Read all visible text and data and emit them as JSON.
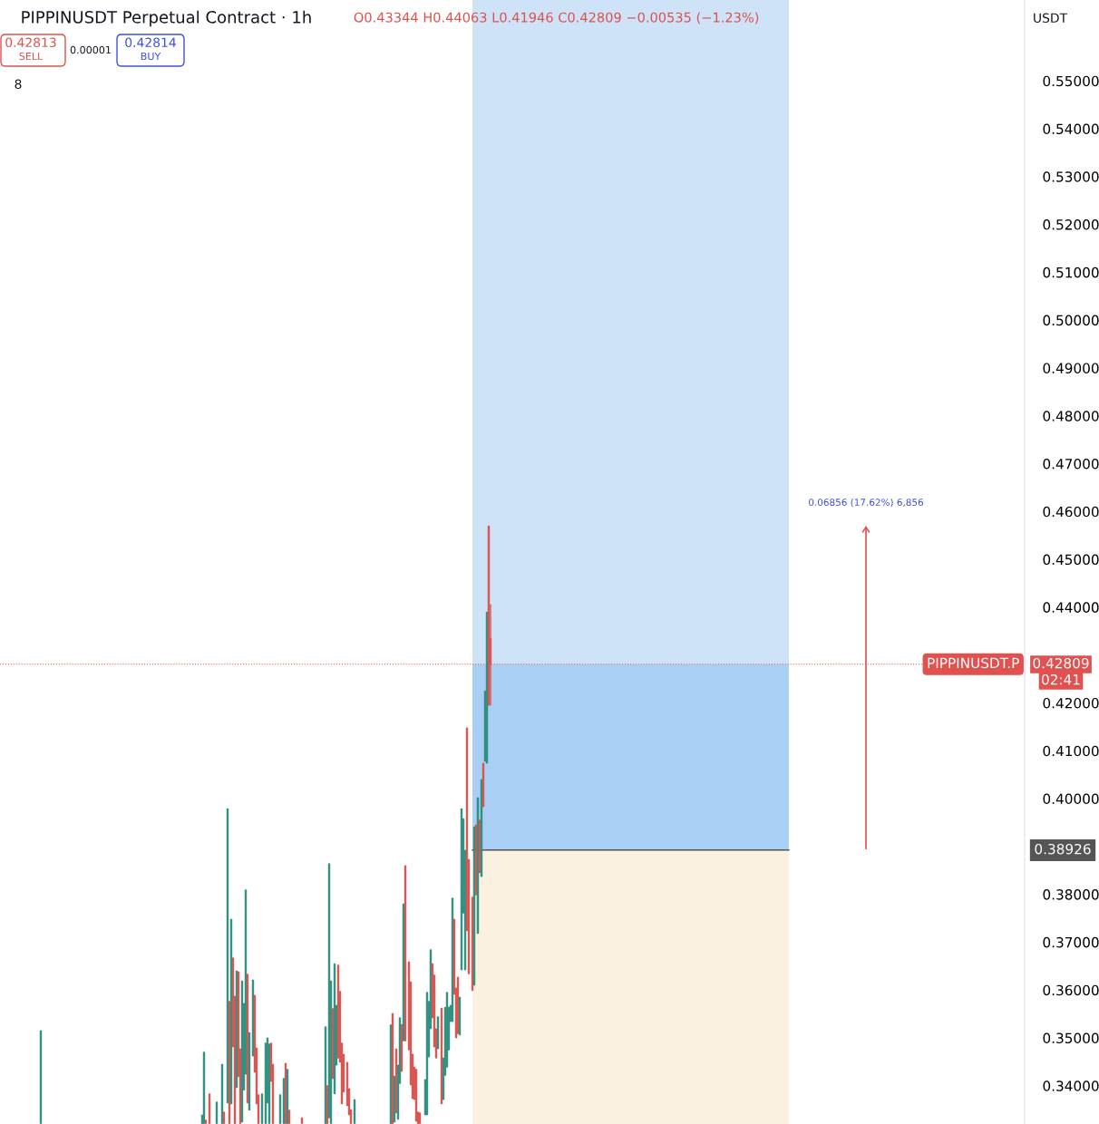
{
  "chart_data": {
    "type": "candlestick",
    "title": "PIPPINUSDT Perpetual Contract · 1h",
    "subtitle": "O0.43344 H0.44063 L0.41946 C0.42809 −0.00535 (−1.23%)",
    "categories": [
      null,
      null,
      null,
      null,
      null,
      null,
      null,
      null,
      null,
      null,
      null,
      null,
      null,
      null,
      null,
      null,
      null,
      null,
      null,
      null,
      null,
      null,
      null,
      null,
      null,
      null,
      null,
      null,
      null,
      null,
      null,
      null,
      null,
      null,
      null,
      null,
      null,
      null,
      null,
      null,
      null,
      null,
      null,
      null,
      null,
      null,
      null,
      null,
      null,
      null,
      null,
      null,
      null,
      null,
      null,
      null,
      null,
      null,
      null,
      null,
      null,
      null,
      null,
      null,
      null,
      null,
      null,
      null,
      null,
      null,
      null,
      null,
      null,
      null,
      null,
      null,
      null,
      null,
      null,
      null,
      null,
      null,
      null,
      null,
      null,
      null,
      null,
      null,
      null,
      null,
      null,
      null,
      null,
      null,
      null,
      null,
      null,
      null,
      null,
      null,
      null,
      null,
      null,
      null,
      null,
      null,
      null,
      null,
      null,
      null,
      null,
      null,
      null,
      null,
      null,
      null,
      null,
      null,
      null,
      null,
      null,
      null,
      null,
      null,
      null,
      null,
      null,
      null,
      null,
      null,
      null,
      null,
      null,
      null,
      null,
      null,
      null,
      null,
      null,
      null,
      null,
      null,
      null,
      null,
      null,
      null,
      null,
      null,
      null,
      null,
      null,
      null,
      null,
      null,
      null,
      null,
      null,
      null,
      null,
      null,
      null,
      null,
      null,
      null,
      null,
      null,
      null,
      null,
      null,
      null,
      null,
      null,
      null,
      null,
      null,
      null,
      null,
      null,
      null,
      null,
      null,
      null,
      null,
      null,
      null,
      null,
      null,
      null,
      null,
      null,
      null,
      null,
      null,
      null,
      null,
      null,
      null,
      null,
      null,
      null,
      null,
      null,
      null,
      null,
      null,
      null,
      null,
      null,
      null,
      null,
      null,
      null,
      null,
      null,
      null,
      null,
      null,
      null,
      null,
      null,
      null,
      null,
      null,
      null,
      null,
      null,
      null,
      null,
      null,
      null,
      null,
      null,
      null,
      null,
      null,
      null,
      null,
      null,
      null,
      null,
      null,
      null,
      null,
      null,
      null,
      null,
      null,
      null,
      null,
      null,
      null,
      null,
      null,
      null,
      null,
      null,
      null,
      null,
      null,
      null,
      null,
      null,
      null,
      null,
      null,
      null,
      null,
      null,
      null,
      null,
      null,
      null,
      null,
      null,
      null,
      null,
      null,
      null,
      null,
      null,
      null,
      null,
      null,
      null,
      null,
      null,
      null,
      null,
      null,
      null,
      null,
      null,
      null,
      null,
      null,
      null,
      null,
      null,
      null,
      null,
      null,
      null,
      null,
      null,
      null,
      null,
      null,
      null,
      null,
      null,
      null,
      null,
      null,
      null,
      null,
      null,
      null,
      null,
      null,
      null,
      null,
      null,
      null,
      null,
      null,
      null,
      null,
      null,
      null,
      null,
      null,
      null,
      null,
      null,
      null,
      null,
      null,
      null,
      null,
      null,
      null,
      null,
      null,
      null,
      null,
      null,
      null,
      null,
      null,
      null,
      null,
      null,
      null,
      null,
      null,
      null,
      null,
      null,
      null,
      null,
      null,
      null,
      null,
      null,
      null,
      null,
      null,
      null,
      null,
      null,
      null,
      null,
      null,
      null,
      null,
      null,
      null,
      null,
      null,
      null,
      null,
      null,
      null,
      null,
      null,
      null,
      null,
      null,
      null,
      null,
      null,
      null,
      null,
      null,
      null,
      null,
      null,
      null,
      null,
      null,
      null,
      null,
      null,
      null,
      null,
      null,
      null,
      null,
      null,
      null,
      null,
      null,
      null,
      null,
      null,
      null,
      null,
      null,
      null,
      null,
      null,
      null,
      null,
      null,
      null,
      null,
      null,
      null,
      null,
      null,
      null,
      null,
      null,
      null,
      null,
      null,
      null,
      null,
      null,
      null,
      null,
      null,
      null,
      null,
      null,
      null,
      null,
      null,
      null,
      null,
      null,
      null,
      null,
      null,
      null,
      null,
      null,
      null,
      null,
      null,
      null,
      null,
      null,
      null,
      null,
      null,
      null,
      null,
      null,
      null,
      null,
      null,
      null,
      null,
      null,
      null,
      null,
      null,
      null,
      null,
      null,
      null,
      null,
      null,
      null,
      null,
      null,
      null,
      null,
      null,
      null,
      null,
      null,
      null,
      null,
      null,
      null,
      null,
      null,
      null,
      null,
      null,
      null,
      null,
      null,
      null,
      null,
      null,
      null,
      null,
      null,
      null,
      null,
      null,
      null,
      null,
      null,
      null,
      null,
      null,
      null,
      null,
      null,
      null,
      null,
      null,
      null,
      null,
      null,
      null,
      null,
      null,
      null,
      null,
      null,
      null,
      null,
      null,
      null,
      null,
      null,
      null,
      null,
      null,
      null,
      null,
      null,
      null,
      null,
      null,
      null,
      null,
      null,
      null,
      null,
      null,
      null,
      null,
      null,
      null,
      null,
      null,
      null,
      null,
      null
    ],
    "ohlc": [
      null,
      null,
      null,
      null,
      null,
      null,
      null,
      null,
      null,
      null,
      null,
      null,
      null,
      null,
      null,
      null,
      null,
      null,
      null,
      null,
      null,
      null,
      [
        0.3321,
        0.3515,
        0.3321,
        0.3515
      ],
      null,
      null,
      null,
      null,
      null,
      null,
      null,
      null,
      null,
      null,
      null,
      null,
      null,
      null,
      null,
      null,
      null,
      null,
      null,
      null,
      null,
      null,
      null,
      null,
      null,
      null,
      null,
      null,
      null,
      null,
      null,
      null,
      null,
      null,
      null,
      null,
      null,
      null,
      null,
      null,
      null,
      null,
      null,
      null,
      null,
      null,
      null,
      null,
      null,
      null,
      null,
      null,
      null,
      null,
      null,
      null,
      null,
      null,
      null,
      null,
      null,
      null,
      null,
      null,
      null,
      null,
      null,
      null,
      null,
      null,
      null,
      null,
      null,
      null,
      null,
      null,
      null,
      null,
      null,
      null,
      null,
      null,
      null,
      null,
      null,
      null,
      null,
      null,
      [
        0.3321,
        0.3339,
        0.3321,
        0.3339
      ],
      [
        0.3321,
        0.347,
        0.3321,
        0.347
      ],
      [
        0.3328,
        0.3328,
        0.3321,
        0.3321
      ],
      null,
      [
        0.3383,
        0.3383,
        0.3321,
        0.3321
      ],
      null,
      null,
      null,
      [
        0.3321,
        0.3366,
        0.3321,
        0.3366
      ],
      null,
      null,
      [
        0.3321,
        0.3445,
        0.3321,
        0.3445
      ],
      [
        0.3345,
        0.3345,
        0.3321,
        0.3321
      ],
      null,
      [
        0.3364,
        0.3979,
        0.3364,
        0.3979
      ],
      [
        0.3576,
        0.3576,
        0.3321,
        0.3321
      ],
      [
        0.3362,
        0.3748,
        0.3362,
        0.3748
      ],
      [
        0.3667,
        0.3667,
        0.3481,
        0.3481
      ],
      [
        0.3587,
        0.3587,
        0.3321,
        0.3321
      ],
      [
        0.3396,
        0.364,
        0.3396,
        0.364
      ],
      [
        0.3638,
        0.3638,
        0.3419,
        0.3419
      ],
      [
        0.3477,
        0.3477,
        0.3321,
        0.3321
      ],
      [
        0.3324,
        0.3619,
        0.3324,
        0.3619
      ],
      [
        0.3391,
        0.3572,
        0.3391,
        0.3572
      ],
      [
        0.3424,
        0.3809,
        0.3424,
        0.3809
      ],
      [
        0.3633,
        0.3633,
        0.3364,
        0.3364
      ],
      [
        0.3349,
        0.3511,
        0.3349,
        0.3511
      ],
      null,
      [
        0.3462,
        0.3621,
        0.3462,
        0.3621
      ],
      [
        0.3589,
        0.3589,
        0.3428,
        0.3428
      ],
      [
        0.3479,
        0.3479,
        0.3362,
        0.3362
      ],
      [
        0.3381,
        0.3381,
        0.3321,
        0.3321
      ],
      null,
      [
        0.3321,
        0.3383,
        0.3321,
        0.3383
      ],
      null,
      [
        0.3321,
        0.3489,
        0.3321,
        0.3489
      ],
      [
        0.3364,
        0.35,
        0.3364,
        0.35
      ],
      [
        0.3321,
        0.3487,
        0.3321,
        0.3487
      ],
      [
        0.3489,
        0.3489,
        0.3409,
        0.3409
      ],
      [
        0.3445,
        0.3445,
        0.3321,
        0.3321
      ],
      null,
      null,
      null,
      [
        0.3321,
        0.3381,
        0.3321,
        0.3381
      ],
      null,
      [
        0.3321,
        0.3415,
        0.3321,
        0.3415
      ],
      [
        0.3447,
        0.3447,
        0.3321,
        0.3321
      ],
      [
        0.3321,
        0.3434,
        0.3321,
        0.3434
      ],
      [
        0.3349,
        0.3349,
        0.3321,
        0.3321
      ],
      null,
      null,
      null,
      null,
      null,
      null,
      [
        0.3333,
        0.3333,
        0.3321,
        0.3321
      ],
      null,
      null,
      null,
      null,
      null,
      null,
      null,
      null,
      null,
      null,
      null,
      null,
      [
        0.3321,
        0.3523,
        0.3321,
        0.3523
      ],
      [
        0.34,
        0.34,
        0.3321,
        0.3321
      ],
      [
        0.3333,
        0.3864,
        0.3333,
        0.3864
      ],
      [
        0.3321,
        0.3619,
        0.3321,
        0.3619
      ],
      [
        0.3561,
        0.3561,
        0.3415,
        0.3415
      ],
      [
        0.3383,
        0.3655,
        0.3383,
        0.3655
      ],
      [
        0.3443,
        0.3568,
        0.3443,
        0.3568
      ],
      [
        0.3652,
        0.3652,
        0.3458,
        0.3458
      ],
      [
        0.3597,
        0.3597,
        0.3449,
        0.3449
      ],
      [
        0.3489,
        0.3489,
        0.3362,
        0.3362
      ],
      [
        0.3466,
        0.3466,
        0.3387,
        0.3387
      ],
      null,
      [
        0.3449,
        0.3449,
        0.3358,
        0.3358
      ],
      [
        0.3394,
        0.3394,
        0.3339,
        0.3339
      ],
      [
        0.335,
        0.335,
        0.3321,
        0.3321
      ],
      null,
      [
        0.3321,
        0.3371,
        0.3321,
        0.3371
      ],
      null,
      null,
      null,
      null,
      null,
      null,
      null,
      null,
      null,
      null,
      null,
      null,
      null,
      null,
      null,
      null,
      null,
      null,
      null,
      [
        0.3321,
        0.3527,
        0.3321,
        0.3527
      ],
      [
        0.3551,
        0.3551,
        0.3321,
        0.3321
      ],
      [
        0.3324,
        0.342,
        0.3324,
        0.342
      ],
      [
        0.3477,
        0.3477,
        0.3343,
        0.3343
      ],
      [
        0.333,
        0.3443,
        0.333,
        0.3443
      ],
      [
        0.3405,
        0.3542,
        0.3405,
        0.3542
      ],
      [
        0.3528,
        0.3528,
        0.343,
        0.343
      ],
      [
        0.3494,
        0.378,
        0.3494,
        0.378
      ],
      [
        0.386,
        0.386,
        0.3494,
        0.3494
      ],
      null,
      [
        0.3659,
        0.3659,
        0.3475,
        0.3475
      ],
      [
        0.3617,
        0.3617,
        0.3402,
        0.3402
      ],
      [
        0.3466,
        0.3466,
        0.3373,
        0.3373
      ],
      [
        0.3439,
        0.3439,
        0.3371,
        0.3371
      ],
      [
        0.3434,
        0.3434,
        0.3326,
        0.3326
      ],
      [
        0.3345,
        0.3345,
        0.3321,
        0.3321
      ],
      [
        0.3343,
        0.3343,
        0.3321,
        0.3321
      ],
      null,
      null,
      [
        0.3339,
        0.3413,
        0.3339,
        0.3413
      ],
      [
        0.3339,
        0.3595,
        0.3339,
        0.3595
      ],
      [
        0.346,
        0.3576,
        0.346,
        0.3576
      ],
      [
        0.3519,
        0.3684,
        0.3519,
        0.3684
      ],
      [
        0.3655,
        0.3655,
        0.3542,
        0.3542
      ],
      [
        0.3631,
        0.3631,
        0.3481,
        0.3481
      ],
      [
        0.3519,
        0.3519,
        0.3458,
        0.3458
      ],
      [
        0.3477,
        0.3544,
        0.3477,
        0.3544
      ],
      null,
      [
        0.3562,
        0.3562,
        0.3362,
        0.3362
      ],
      [
        0.3371,
        0.3458,
        0.3371,
        0.3458
      ],
      [
        0.3422,
        0.3564,
        0.3422,
        0.3564
      ],
      [
        0.3439,
        0.3595,
        0.3439,
        0.3595
      ],
      [
        0.3475,
        0.3564,
        0.3475,
        0.3564
      ],
      [
        0.3534,
        0.3568,
        0.3534,
        0.3568
      ],
      [
        0.3534,
        0.3792,
        0.3534,
        0.3792
      ],
      [
        0.3748,
        0.3748,
        0.3591,
        0.3591
      ],
      [
        0.3604,
        0.3604,
        0.35,
        0.35
      ],
      [
        0.3627,
        0.3627,
        0.3509,
        0.3509
      ],
      [
        0.3506,
        0.3585,
        0.3506,
        0.3585
      ],
      [
        0.3642,
        0.3979,
        0.3642,
        0.3979
      ],
      [
        0.3761,
        0.3958,
        0.3761,
        0.3958
      ],
      [
        0.3642,
        0.3892,
        0.3642,
        0.3892
      ],
      [
        0.4148,
        0.4148,
        0.3724,
        0.3724
      ],
      [
        0.3873,
        0.3873,
        0.3634,
        0.3634
      ],
      null,
      [
        0.3794,
        0.3794,
        0.3599,
        0.3599
      ],
      [
        0.361,
        0.3941,
        0.361,
        0.3941
      ],
      [
        0.3945,
        0.3945,
        0.3799,
        0.3799
      ],
      [
        0.3718,
        0.4002,
        0.3718,
        0.4002
      ],
      [
        0.3955,
        0.3955,
        0.3845,
        0.3845
      ],
      [
        0.3837,
        0.404,
        0.3837,
        0.404
      ],
      [
        0.4074,
        0.4074,
        0.3983,
        0.3983
      ],
      [
        0.4078,
        0.4225,
        0.4078,
        0.4225
      ],
      [
        0.4074,
        0.439,
        0.4074,
        0.439
      ],
      [
        0.457,
        0.457,
        0.4195,
        0.4195
      ],
      [
        0.43344,
        0.44063,
        0.41946,
        0.42809
      ],
      null,
      null,
      null,
      null,
      null,
      null,
      null,
      null,
      null,
      null,
      null,
      null,
      null,
      null,
      null,
      null,
      null,
      null,
      null,
      null,
      null,
      null,
      null,
      null,
      null,
      null,
      null,
      null,
      null,
      null,
      null,
      null,
      null,
      null,
      null,
      null,
      null,
      null,
      null,
      null,
      null,
      null,
      null,
      null,
      null,
      null,
      null,
      null,
      null,
      null,
      null,
      null,
      null,
      null,
      null,
      null,
      null,
      null,
      null,
      null,
      null,
      null,
      null,
      null,
      null,
      null,
      null,
      null,
      null,
      null,
      null,
      null,
      null,
      null,
      null,
      null,
      null,
      null,
      null,
      null,
      null,
      null,
      null,
      null,
      null,
      null,
      null,
      null,
      null,
      null,
      null,
      null,
      null,
      null,
      null,
      null,
      null,
      null,
      null,
      null,
      null,
      null,
      null,
      null,
      null,
      null,
      null,
      null,
      null,
      null,
      null,
      null,
      null,
      null,
      null,
      null,
      null,
      null,
      null,
      null,
      null,
      null,
      null,
      null,
      null,
      null,
      null,
      null,
      null,
      null,
      null,
      null,
      null,
      null,
      null,
      null,
      null,
      null,
      null,
      null,
      null,
      null,
      null,
      null,
      null,
      null,
      null,
      null,
      null,
      null,
      null,
      null,
      null,
      null,
      null,
      null,
      null,
      null,
      null,
      null,
      null,
      null,
      null,
      null,
      null,
      null,
      null,
      null,
      null,
      null,
      null,
      null,
      null,
      null,
      null,
      null,
      null,
      null,
      null,
      null,
      null,
      null,
      null,
      null,
      null,
      null,
      null,
      null,
      null,
      null,
      null,
      null,
      null,
      null,
      null,
      null,
      null,
      null,
      null,
      null,
      null,
      null,
      null,
      null,
      null,
      null,
      null,
      null,
      null,
      null,
      null,
      null,
      null,
      null,
      null,
      null,
      null,
      null,
      null,
      null,
      null,
      null,
      null,
      null,
      null,
      null,
      null,
      null,
      null,
      null,
      null,
      null,
      null,
      null,
      null,
      null,
      null,
      null,
      null,
      null,
      null,
      null,
      null,
      null,
      null,
      null,
      null,
      null,
      null,
      null,
      null,
      null,
      null,
      null,
      null,
      null,
      null,
      null,
      null,
      null,
      null,
      null,
      null,
      null,
      null,
      null,
      null,
      null,
      null,
      null,
      null,
      null,
      null,
      null,
      null,
      null,
      null,
      null,
      null,
      null,
      null,
      null,
      null,
      null,
      null,
      null,
      null,
      null,
      null,
      null,
      null,
      null,
      null,
      null
    ],
    "ylim": [
      0.332,
      0.5669
    ],
    "yticks": [
      {
        "value": 0.34,
        "label": "0.34000"
      },
      {
        "value": 0.35,
        "label": "0.35000"
      },
      {
        "value": 0.36,
        "label": "0.36000"
      },
      {
        "value": 0.37,
        "label": "0.37000"
      },
      {
        "value": 0.38,
        "label": "0.38000"
      },
      {
        "value": 0.4,
        "label": "0.40000"
      },
      {
        "value": 0.41,
        "label": "0.41000"
      },
      {
        "value": 0.42,
        "label": "0.42000"
      },
      {
        "value": 0.44,
        "label": "0.44000"
      },
      {
        "value": 0.45,
        "label": "0.45000"
      },
      {
        "value": 0.46,
        "label": "0.46000"
      },
      {
        "value": 0.47,
        "label": "0.47000"
      },
      {
        "value": 0.48,
        "label": "0.48000"
      },
      {
        "value": 0.49,
        "label": "0.49000"
      },
      {
        "value": 0.5,
        "label": "0.50000"
      },
      {
        "value": 0.51,
        "label": "0.51000"
      },
      {
        "value": 0.52,
        "label": "0.52000"
      },
      {
        "value": 0.53,
        "label": "0.53000"
      },
      {
        "value": 0.54,
        "label": "0.54000"
      },
      {
        "value": 0.55,
        "label": "0.55000"
      }
    ],
    "tick_labels": "y",
    "bands": [
      {
        "axis": "y",
        "from": 0.42809,
        "to": 0.5669,
        "color": "#cfe3f8"
      },
      {
        "axis": "y",
        "from": 0.38926,
        "to": 0.42809,
        "color": "#a9cff5"
      },
      {
        "axis": "y",
        "from": 0.332,
        "to": 0.38926,
        "color": "#faf1e1"
      }
    ],
    "ref_lines": [
      {
        "axis": "y",
        "value": 0.42809,
        "label": "PIPPINUSDT.P",
        "color": "#e0524f",
        "line_style": "dotted"
      },
      {
        "axis": "y",
        "value": 0.38926,
        "color": "#555555",
        "line_style": "solid"
      }
    ],
    "annotations": [
      "0.42813",
      "SELL",
      "0.00001",
      "0.42814",
      "BUY",
      "8",
      "USDT",
      "02:41",
      "0.42809",
      "0.06856 (17.62%) 6,856",
      "0.38926"
    ]
  }
}
